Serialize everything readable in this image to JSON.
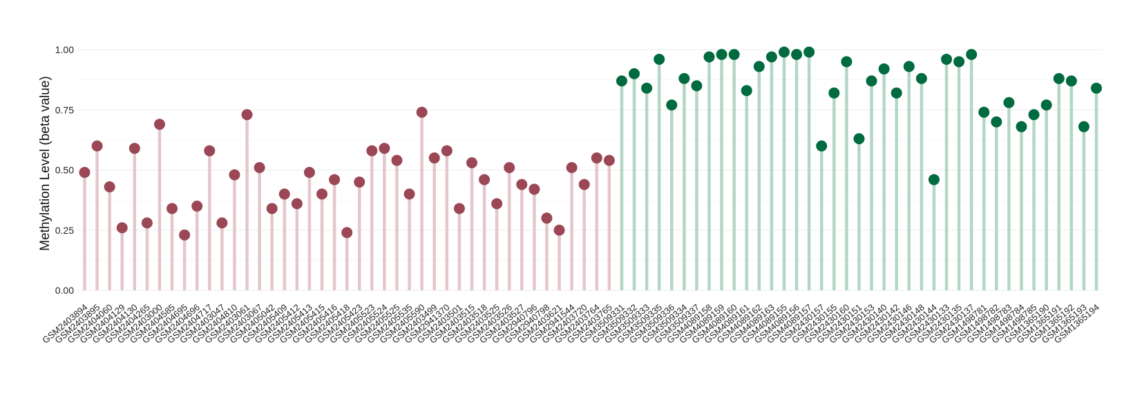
{
  "chart_data": {
    "type": "lollipop",
    "title": "",
    "xlabel": "",
    "ylabel": "Methylation Level (beta value)",
    "ylim": [
      0,
      1
    ],
    "yticks": [
      "0.00",
      "0.25",
      "0.50",
      "0.75",
      "1.00"
    ],
    "grid": true,
    "legend": "none",
    "categories": [
      "GSM2403894",
      "GSM2403895",
      "GSM2404060",
      "GSM2404129",
      "GSM2404130",
      "GSM2404265",
      "GSM2403000",
      "GSM2404585",
      "GSM2404695",
      "GSM2404696",
      "GSM2404717",
      "GSM2403047",
      "GSM2404810",
      "GSM2403061",
      "GSM2403067",
      "GSM2405042",
      "GSM2405409",
      "GSM2405412",
      "GSM2405413",
      "GSM2405415",
      "GSM2405416",
      "GSM2405418",
      "GSM2405423",
      "GSM2405523",
      "GSM2405524",
      "GSM2405525",
      "GSM2405535",
      "GSM2405590",
      "GSM2403499",
      "GSM2941370",
      "GSM2403501",
      "GSM2403515",
      "GSM2403518",
      "GSM2403525",
      "GSM2403526",
      "GSM2403527",
      "GSM2940796",
      "GSM2940798",
      "GSM2403621",
      "GSM2941544",
      "GSM2403720",
      "GSM2403764",
      "GSM2403765",
      "GSM3509331",
      "GSM3509332",
      "GSM3509333",
      "GSM3509335",
      "GSM3509336",
      "GSM3509334",
      "GSM3509337",
      "GSM4089158",
      "GSM4089159",
      "GSM4089160",
      "GSM4089161",
      "GSM4089162",
      "GSM4089163",
      "GSM4089155",
      "GSM4089156",
      "GSM4089157",
      "GSM2430157",
      "GSM2430155",
      "GSM2430160",
      "GSM2430151",
      "GSM2430153",
      "GSM2430140",
      "GSM2430142",
      "GSM2430146",
      "GSM2430148",
      "GSM2430144",
      "GSM2430133",
      "GSM2430135",
      "GSM2430137",
      "GSM1498781",
      "GSM1498782",
      "GSM1498783",
      "GSM1498784",
      "GSM1498785",
      "GSM1365190",
      "GSM1365191",
      "GSM1365192",
      "GSM1365193",
      "GSM1365194"
    ],
    "values": [
      0.49,
      0.6,
      0.43,
      0.26,
      0.59,
      0.28,
      0.69,
      0.34,
      0.23,
      0.35,
      0.58,
      0.28,
      0.48,
      0.73,
      0.51,
      0.34,
      0.4,
      0.36,
      0.49,
      0.4,
      0.46,
      0.24,
      0.45,
      0.58,
      0.59,
      0.54,
      0.4,
      0.74,
      0.55,
      0.58,
      0.34,
      0.53,
      0.46,
      0.36,
      0.51,
      0.44,
      0.42,
      0.3,
      0.25,
      0.51,
      0.44,
      0.55,
      0.54,
      0.87,
      0.9,
      0.84,
      0.96,
      0.77,
      0.88,
      0.85,
      0.97,
      0.98,
      0.98,
      0.83,
      0.93,
      0.97,
      0.99,
      0.98,
      0.99,
      0.6,
      0.82,
      0.95,
      0.63,
      0.87,
      0.92,
      0.82,
      0.93,
      0.88,
      0.46,
      0.96,
      0.95,
      0.98,
      0.74,
      0.7,
      0.78,
      0.68,
      0.73,
      0.77,
      0.88,
      0.87,
      0.68,
      0.84
    ],
    "group_split_index": 43,
    "colors": {
      "group1_point": "#9b4755",
      "group1_stem": "#e3c7cb",
      "group2_point": "#006b3f",
      "group2_stem": "#b4d6c5",
      "grid": "#ebebeb",
      "text": "#222222"
    }
  }
}
